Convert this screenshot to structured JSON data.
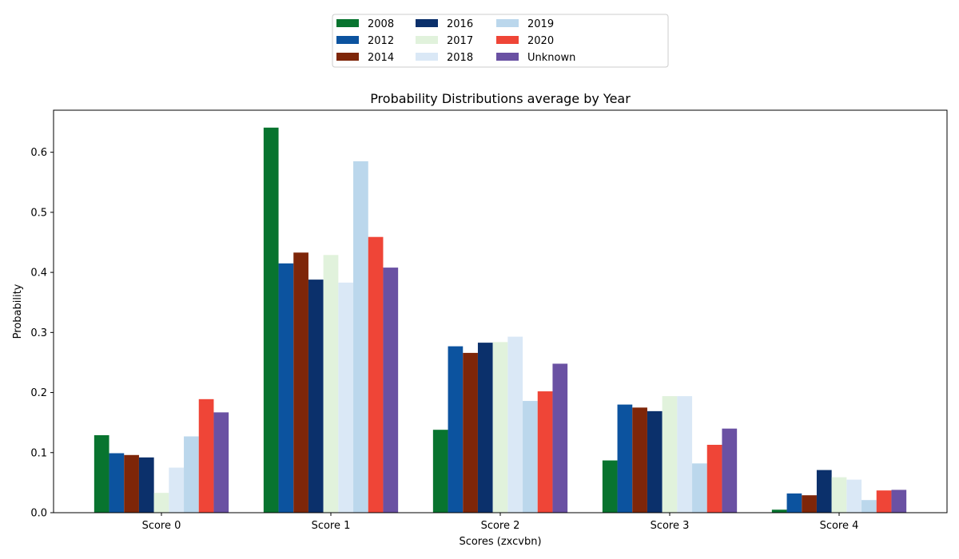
{
  "chart_data": {
    "type": "bar",
    "title": "Probability Distributions average by Year",
    "xlabel": "Scores (zxcvbn)",
    "ylabel": "Probability",
    "categories": [
      "Score 0",
      "Score 1",
      "Score 2",
      "Score 3",
      "Score 4"
    ],
    "ylim": [
      0,
      0.67
    ],
    "yticks": [
      "0.0",
      "0.1",
      "0.2",
      "0.3",
      "0.4",
      "0.5",
      "0.6"
    ],
    "legend_position": "top-center",
    "grid": false,
    "series": [
      {
        "name": "2008",
        "color": "#08742f",
        "values": [
          0.129,
          0.641,
          0.138,
          0.087,
          0.005
        ]
      },
      {
        "name": "2012",
        "color": "#0c539f",
        "values": [
          0.099,
          0.415,
          0.277,
          0.18,
          0.032
        ]
      },
      {
        "name": "2014",
        "color": "#7e2609",
        "values": [
          0.096,
          0.433,
          0.266,
          0.175,
          0.029
        ]
      },
      {
        "name": "2016",
        "color": "#0b306b",
        "values": [
          0.092,
          0.388,
          0.283,
          0.169,
          0.071
        ]
      },
      {
        "name": "2017",
        "color": "#e1f2dc",
        "values": [
          0.033,
          0.429,
          0.284,
          0.194,
          0.059
        ]
      },
      {
        "name": "2018",
        "color": "#dae8f6",
        "values": [
          0.075,
          0.383,
          0.293,
          0.194,
          0.055
        ]
      },
      {
        "name": "2019",
        "color": "#bbd7ec",
        "values": [
          0.127,
          0.585,
          0.186,
          0.082,
          0.021
        ]
      },
      {
        "name": "2020",
        "color": "#ef4537",
        "values": [
          0.189,
          0.459,
          0.202,
          0.113,
          0.037
        ]
      },
      {
        "name": "Unknown",
        "color": "#6a51a3",
        "values": [
          0.167,
          0.408,
          0.248,
          0.14,
          0.038
        ]
      }
    ]
  }
}
